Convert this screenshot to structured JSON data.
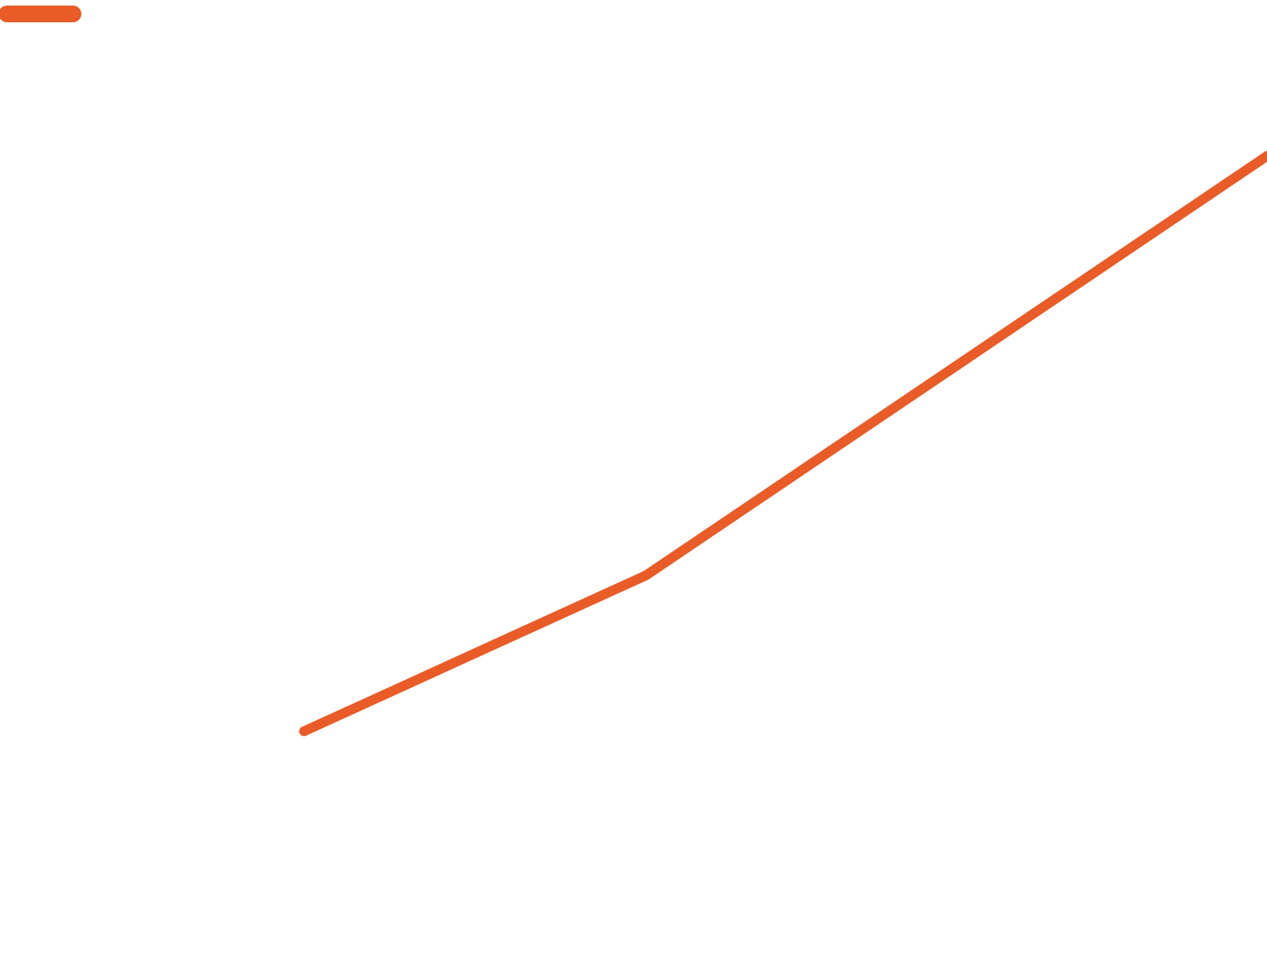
{
  "colors": {
    "background": "#ffffff",
    "series": "#e95b27"
  },
  "chart_data": {
    "type": "line",
    "grid": false,
    "legend": "top-left",
    "xlim": [
      0,
      10
    ],
    "ylim": [
      0,
      10
    ],
    "series": [
      {
        "color": "#e95b27",
        "x": [
          2.4,
          5.1,
          10
        ],
        "y": [
          2.5,
          4.1,
          8.4
        ]
      }
    ]
  }
}
